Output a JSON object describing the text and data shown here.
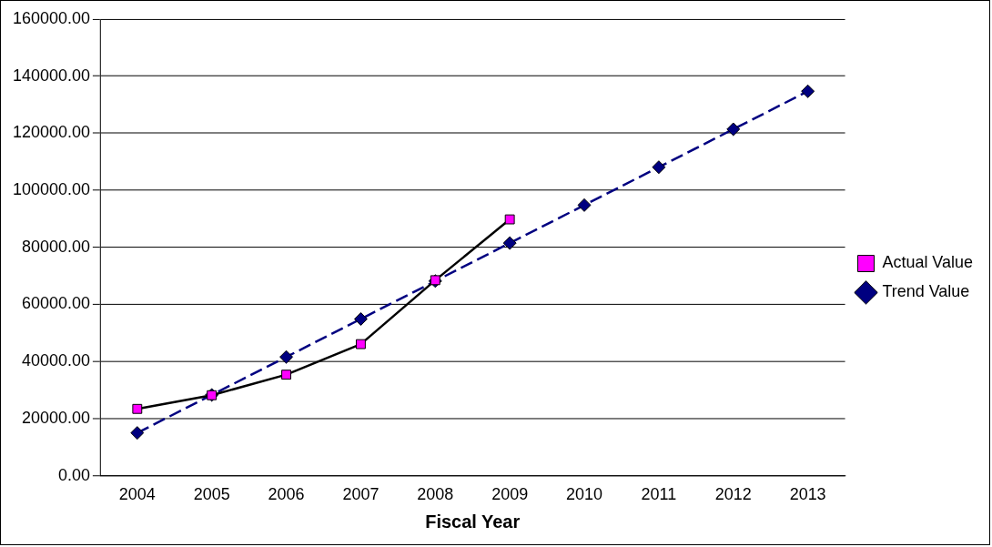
{
  "chart_data": {
    "type": "line",
    "xlabel": "Fiscal Year",
    "categories": [
      "2004",
      "2005",
      "2006",
      "2007",
      "2008",
      "2009",
      "2010",
      "2011",
      "2012",
      "2013"
    ],
    "series": [
      {
        "name": "Trend Value",
        "color": "#000080",
        "line_style": "dashed",
        "marker": "diamond",
        "values": [
          15000,
          28300,
          41600,
          54900,
          68200,
          81500,
          94800,
          108100,
          121400,
          134700
        ]
      },
      {
        "name": "Actual Value",
        "color": "#ff00ff",
        "line_style": "solid",
        "marker": "square",
        "values": [
          23400,
          28200,
          35400,
          46100,
          68500,
          89800,
          null,
          null,
          null,
          null
        ]
      }
    ],
    "ylim": [
      0,
      160000
    ],
    "yticks": [
      {
        "value": 0,
        "label": "0.00"
      },
      {
        "value": 20000,
        "label": "20000.00"
      },
      {
        "value": 40000,
        "label": "40000.00"
      },
      {
        "value": 60000,
        "label": "60000.00"
      },
      {
        "value": 80000,
        "label": "80000.00"
      },
      {
        "value": 100000,
        "label": "100000.00"
      },
      {
        "value": 120000,
        "label": "120000.00"
      },
      {
        "value": 140000,
        "label": "140000.00"
      },
      {
        "value": 160000,
        "label": "160000.00"
      }
    ],
    "grid": "y",
    "legend": "right"
  }
}
